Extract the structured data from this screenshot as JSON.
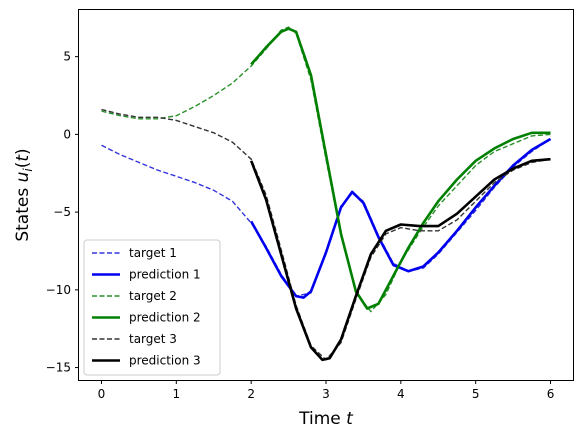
{
  "chart_data": {
    "type": "line",
    "xlabel": "Time t",
    "ylabel": "States u_i(t)",
    "xlim": [
      -0.3,
      6.3
    ],
    "ylim": [
      -15.8,
      8.0
    ],
    "xticks": [
      "0",
      "1",
      "2",
      "3",
      "4",
      "5",
      "6"
    ],
    "yticks": [
      "−15",
      "−10",
      "−5",
      "0",
      "5"
    ],
    "legend_position": "lower-left",
    "series": [
      {
        "name": "target 1",
        "color": "#3333dd",
        "style": "dashed",
        "x": [
          0,
          0.25,
          0.5,
          0.75,
          1,
          1.25,
          1.5,
          1.75,
          2,
          2.2,
          2.4,
          2.6,
          2.8,
          3.0,
          3.2,
          3.35,
          3.5,
          3.7,
          3.9,
          4.1,
          4.3,
          4.5,
          4.75,
          5,
          5.25,
          5.5,
          5.75,
          6
        ],
        "y": [
          -0.7,
          -1.3,
          -1.8,
          -2.3,
          -2.7,
          -3.1,
          -3.6,
          -4.3,
          -5.7,
          -7.2,
          -9.0,
          -10.4,
          -10.2,
          -7.5,
          -4.6,
          -3.8,
          -4.3,
          -6.5,
          -8.3,
          -8.8,
          -8.6,
          -7.7,
          -6.3,
          -4.9,
          -3.4,
          -2.1,
          -1.1,
          -0.3
        ]
      },
      {
        "name": "prediction 1",
        "color": "#0000ee",
        "style": "solid",
        "x": [
          2,
          2.2,
          2.4,
          2.6,
          2.7,
          2.8,
          3.0,
          3.2,
          3.35,
          3.5,
          3.7,
          3.9,
          4.1,
          4.3,
          4.5,
          4.75,
          5,
          5.25,
          5.5,
          5.75,
          6
        ],
        "y": [
          -5.6,
          -7.3,
          -9.1,
          -10.4,
          -10.5,
          -10.1,
          -7.6,
          -4.7,
          -3.7,
          -4.4,
          -6.6,
          -8.4,
          -8.8,
          -8.5,
          -7.6,
          -6.2,
          -4.7,
          -3.3,
          -2.0,
          -1.0,
          -0.3
        ]
      },
      {
        "name": "target 2",
        "color": "#2a912a",
        "style": "dashed",
        "x": [
          0,
          0.25,
          0.5,
          0.75,
          1,
          1.25,
          1.5,
          1.75,
          2,
          2.2,
          2.4,
          2.5,
          2.6,
          2.8,
          3.0,
          3.2,
          3.4,
          3.6,
          3.8,
          4.0,
          4.25,
          4.5,
          4.75,
          5,
          5.25,
          5.5,
          5.75,
          6
        ],
        "y": [
          1.5,
          1.2,
          1.0,
          1.0,
          1.2,
          1.8,
          2.5,
          3.3,
          4.4,
          5.5,
          6.7,
          6.9,
          6.5,
          3.5,
          -1.6,
          -6.5,
          -10.2,
          -11.4,
          -10.3,
          -8.2,
          -6.3,
          -4.6,
          -3.3,
          -2.0,
          -1.1,
          -0.6,
          -0.1,
          0.0
        ]
      },
      {
        "name": "prediction 2",
        "color": "#008000",
        "style": "solid",
        "x": [
          2,
          2.2,
          2.4,
          2.5,
          2.6,
          2.8,
          3.0,
          3.2,
          3.4,
          3.55,
          3.7,
          3.9,
          4.1,
          4.3,
          4.5,
          4.75,
          5,
          5.25,
          5.5,
          5.75,
          6
        ],
        "y": [
          4.5,
          5.6,
          6.6,
          6.8,
          6.6,
          3.8,
          -1.3,
          -6.4,
          -10.1,
          -11.2,
          -10.9,
          -9.1,
          -7.3,
          -5.7,
          -4.3,
          -2.9,
          -1.7,
          -0.9,
          -0.3,
          0.1,
          0.1
        ]
      },
      {
        "name": "target 3",
        "color": "#333333",
        "style": "dashed",
        "x": [
          0,
          0.25,
          0.5,
          0.75,
          1,
          1.25,
          1.5,
          1.75,
          2,
          2.2,
          2.4,
          2.6,
          2.8,
          3.0,
          3.2,
          3.4,
          3.6,
          3.8,
          4.0,
          4.25,
          4.5,
          4.75,
          5,
          5.25,
          5.5,
          5.75,
          6
        ],
        "y": [
          1.6,
          1.3,
          1.1,
          1.1,
          0.9,
          0.5,
          0.1,
          -0.5,
          -1.6,
          -3.9,
          -7.4,
          -11.0,
          -13.6,
          -14.5,
          -13.4,
          -10.6,
          -7.9,
          -6.4,
          -6.0,
          -6.2,
          -6.2,
          -5.5,
          -4.3,
          -3.1,
          -2.3,
          -1.8,
          -1.6
        ]
      },
      {
        "name": "prediction 3",
        "color": "#000000",
        "style": "solid",
        "x": [
          2,
          2.2,
          2.4,
          2.6,
          2.8,
          2.95,
          3.05,
          3.2,
          3.4,
          3.6,
          3.8,
          4.0,
          4.25,
          4.5,
          4.75,
          5,
          5.25,
          5.5,
          5.75,
          6
        ],
        "y": [
          -1.7,
          -4.2,
          -7.7,
          -11.2,
          -13.7,
          -14.5,
          -14.4,
          -13.2,
          -10.4,
          -7.7,
          -6.2,
          -5.8,
          -5.9,
          -5.9,
          -5.1,
          -4.0,
          -2.9,
          -2.2,
          -1.7,
          -1.6
        ]
      }
    ]
  }
}
